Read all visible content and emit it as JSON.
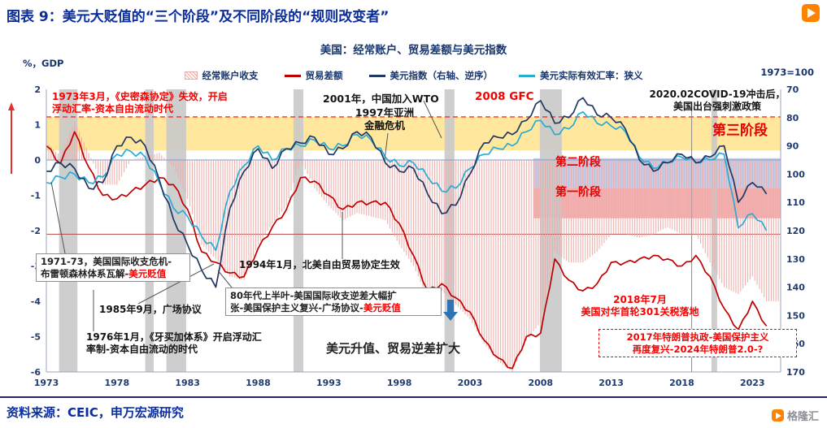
{
  "header": {
    "title": "图表 9：美元大贬值的“三个阶段”及不同阶段的“规则改变者”"
  },
  "footer": {
    "source": "资料来源：CEIC，申万宏源研究"
  },
  "watermark": "格隆汇",
  "colors": {
    "accent_blue": "#0c2e9c",
    "stage_label_red": "#e80000",
    "logo_orange": "#ff8200"
  },
  "chart_data": {
    "type": "combo-bar-line",
    "title": "美国：经常账户、贸易差额与美元指数",
    "left_axis": {
      "label": "%，GDP",
      "min": -6,
      "max": 2,
      "ticks": [
        2,
        1,
        0,
        -1,
        -2,
        -3,
        -4,
        -5,
        -6
      ]
    },
    "right_axis": {
      "label": "1973=100",
      "min": 70,
      "max": 170,
      "inverted": true,
      "ticks": [
        70,
        80,
        90,
        100,
        110,
        120,
        130,
        140,
        150,
        160,
        170
      ]
    },
    "x_ticks": [
      1973,
      1978,
      1983,
      1988,
      1993,
      1998,
      2003,
      2008,
      2013,
      2018,
      2023
    ],
    "x_range": [
      1973,
      2025
    ],
    "recession_color": "#c9c9c9",
    "recessions": [
      [
        1973.9,
        1975.2
      ],
      [
        1980.0,
        1980.6
      ],
      [
        1981.5,
        1982.9
      ],
      [
        1990.5,
        1991.2
      ],
      [
        2001.2,
        2001.9
      ],
      [
        2007.95,
        2009.5
      ],
      [
        2020.1,
        2020.5
      ]
    ],
    "stage_bands": [
      {
        "label": "第三阶段",
        "y_from": 0.27,
        "y_to": 1.22,
        "x_from": 1973,
        "x_to": 2025,
        "color": "#ffe699",
        "opacity": 0.95
      },
      {
        "label": "第二阶段",
        "y_from": -0.8,
        "y_to": 0.05,
        "x_from": 2007.5,
        "x_to": 2025,
        "color": "#b9c7e8",
        "opacity": 0.85
      },
      {
        "label": "第一阶段",
        "y_from": -1.65,
        "y_to": -0.8,
        "x_from": 2007.5,
        "x_to": 2025,
        "color": "#f0a2a2",
        "opacity": 0.85
      }
    ],
    "ref_lines": [
      {
        "y": 1.22,
        "style": "dashed",
        "color": "#ff2a2a",
        "width": 1.3
      },
      {
        "y": 0,
        "style": "solid",
        "color": "#7c95c4",
        "width": 1
      },
      {
        "y": -2.1,
        "style": "solid",
        "color": "#b24a4a",
        "width": 1
      }
    ],
    "v_lines": [
      {
        "x": 2018.7,
        "color": "#8a8a8a"
      }
    ],
    "series": {
      "current_account": {
        "name": "经常账户收支",
        "axis": "left",
        "style": "bar",
        "color": "#efaaa6",
        "years_start": 1973,
        "values": [
          0.5,
          0.1,
          1.1,
          0.2,
          -0.7,
          -0.7,
          0.0,
          0.1,
          0.2,
          -0.2,
          -1.1,
          -2.4,
          -2.8,
          -3.3,
          -3.4,
          -2.4,
          -1.8,
          -1.3,
          0.0,
          -0.8,
          -1.3,
          -1.7,
          -1.5,
          -1.6,
          -1.7,
          -2.4,
          -3.0,
          -3.9,
          -3.7,
          -4.1,
          -4.5,
          -5.2,
          -5.7,
          -6.0,
          -5.1,
          -4.6,
          -2.6,
          -2.9,
          -2.9,
          -2.6,
          -2.1,
          -2.1,
          -2.2,
          -2.1,
          -1.9,
          -2.1,
          -2.1,
          -2.9,
          -3.6,
          -3.8,
          -3.3,
          -4.0
        ]
      },
      "trade_balance": {
        "name": "贸易差额",
        "axis": "left",
        "style": "line",
        "color": "#c00000",
        "years_start": 1973,
        "values": [
          0.4,
          -0.1,
          0.8,
          -0.2,
          -1.0,
          -1.1,
          -0.9,
          -0.7,
          -0.5,
          -0.7,
          -1.4,
          -2.6,
          -2.9,
          -3.2,
          -3.3,
          -2.5,
          -1.9,
          -1.4,
          -0.5,
          -0.6,
          -1.0,
          -1.4,
          -1.2,
          -1.2,
          -1.2,
          -1.8,
          -2.7,
          -3.7,
          -3.5,
          -3.9,
          -4.3,
          -5.1,
          -5.6,
          -5.9,
          -5.0,
          -4.9,
          -2.8,
          -3.4,
          -3.7,
          -3.5,
          -2.9,
          -2.9,
          -2.8,
          -2.7,
          -2.8,
          -3.0,
          -2.7,
          -3.3,
          -4.2,
          -4.8,
          -4.0,
          -4.7
        ]
      },
      "usd_index": {
        "name": "美元指数（右轴、逆序）",
        "axis": "right",
        "style": "line",
        "color": "#1f3864",
        "years_start": 1973,
        "values": [
          99,
          96,
          98,
          105,
          103,
          90,
          87,
          90,
          102,
          116,
          125,
          134,
          140,
          112,
          99,
          91,
          98,
          91,
          89,
          87,
          93,
          91,
          85,
          87,
          96,
          99,
          98,
          107,
          114,
          111,
          100,
          89,
          87,
          86,
          81,
          74,
          82,
          80,
          73,
          79,
          80,
          84,
          95,
          99,
          96,
          93,
          96,
          94,
          90,
          110,
          103,
          107
        ]
      },
      "reer_narrow": {
        "name": "美元实际有效汇率：狭义",
        "axis": "right",
        "style": "line",
        "color": "#29abd4",
        "years_start": 1973,
        "values": [
          103,
          101,
          100,
          103,
          101,
          93,
          92,
          94,
          103,
          112,
          115,
          122,
          127,
          106,
          97,
          90,
          95,
          91,
          90,
          88,
          91,
          90,
          86,
          88,
          94,
          97,
          96,
          101,
          106,
          105,
          98,
          93,
          91,
          90,
          85,
          81,
          86,
          84,
          78,
          82,
          83,
          85,
          94,
          98,
          96,
          94,
          96,
          95,
          93,
          119,
          114,
          120
        ]
      }
    }
  },
  "annotations": {
    "smithsonian": "1973年3月，《史密森协定》失效，开启\n浮动汇率-资本自由流动时代",
    "wto": "2001年，中国加入WTO",
    "asia_crisis": "1997年亚洲\n金融危机",
    "gfc": "2008 GFC",
    "covid": "2020.02COVID-19冲击后，\n美国出台强刺激政策",
    "bop_crisis": {
      "text": "1971-73，美国国际收支危机-\n布雷顿森林体系瓦解-",
      "highlight": "美元贬值"
    },
    "nafta": "1994年1月，北美自由贸易协定生效",
    "eighties": {
      "text": "80年代上半叶-美国国际收支逆差大幅扩\n张-美国保护主义复兴-广场协议-",
      "highlight": "美元贬值"
    },
    "plaza": "1985年9月，广场协议",
    "jamaica": "1976年1月，《牙买加体系》开启浮动汇\n率制-资本自由流动的时代",
    "usd_appreciation": "美元升值、贸易逆差扩大",
    "tariff_301": "2018年7月\n美国对华首轮301关税落地",
    "trump": "2017年特朗普执政-美国保护主义\n再度复兴-2024年特朗普2.0-?"
  }
}
